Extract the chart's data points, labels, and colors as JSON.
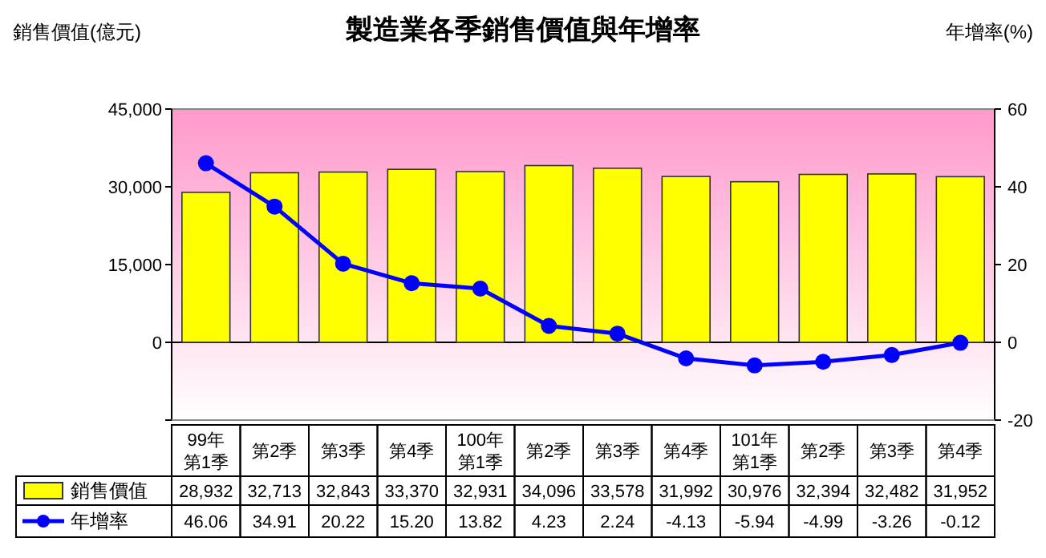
{
  "chart_data": {
    "type": "bar",
    "title": "製造業各季銷售價值與年增率",
    "ylabel": "銷售價值(億元)",
    "y2label": "年增率(%)",
    "categories": [
      "99年第1季",
      "第2季",
      "第3季",
      "第4季",
      "100年第1季",
      "第2季",
      "第3季",
      "第4季",
      "101年第1季",
      "第2季",
      "第3季",
      "第4季"
    ],
    "series": [
      {
        "name": "銷售價值",
        "color": "#ffff00",
        "values": [
          28932,
          32713,
          32843,
          33370,
          32931,
          34096,
          33578,
          31992,
          30976,
          32394,
          32482,
          31952
        ],
        "value_labels": [
          "28,932",
          "32,713",
          "32,843",
          "33,370",
          "32,931",
          "34,096",
          "33,578",
          "31,992",
          "30,976",
          "32,394",
          "32,482",
          "31,952"
        ]
      },
      {
        "name": "年增率",
        "type": "line",
        "axis": "y2",
        "color": "#0000ff",
        "marker": "circle",
        "values": [
          46.06,
          34.91,
          20.22,
          15.2,
          13.82,
          4.23,
          2.24,
          -4.13,
          -5.94,
          -4.99,
          -3.26,
          -0.12
        ],
        "value_labels": [
          "46.06",
          "34.91",
          "20.22",
          "15.20",
          "13.82",
          "4.23",
          "2.24",
          "-4.13",
          "-5.94",
          "-4.99",
          "-3.26",
          "-0.12"
        ]
      }
    ],
    "ylim": [
      -15000,
      45000
    ],
    "yticks": [
      {
        "value": -15000,
        "label": null
      },
      {
        "value": 0,
        "label": "0"
      },
      {
        "value": 15000,
        "label": "15,000"
      },
      {
        "value": 30000,
        "label": "30,000"
      },
      {
        "value": 45000,
        "label": "45,000"
      }
    ],
    "y2lim": [
      -20,
      60
    ],
    "y2ticks": [
      -20,
      0,
      20,
      40,
      60
    ],
    "ref_lines": [
      {
        "axis": "y",
        "value": 0,
        "color": "#000000"
      }
    ],
    "legend": "bottom",
    "grid": false
  }
}
